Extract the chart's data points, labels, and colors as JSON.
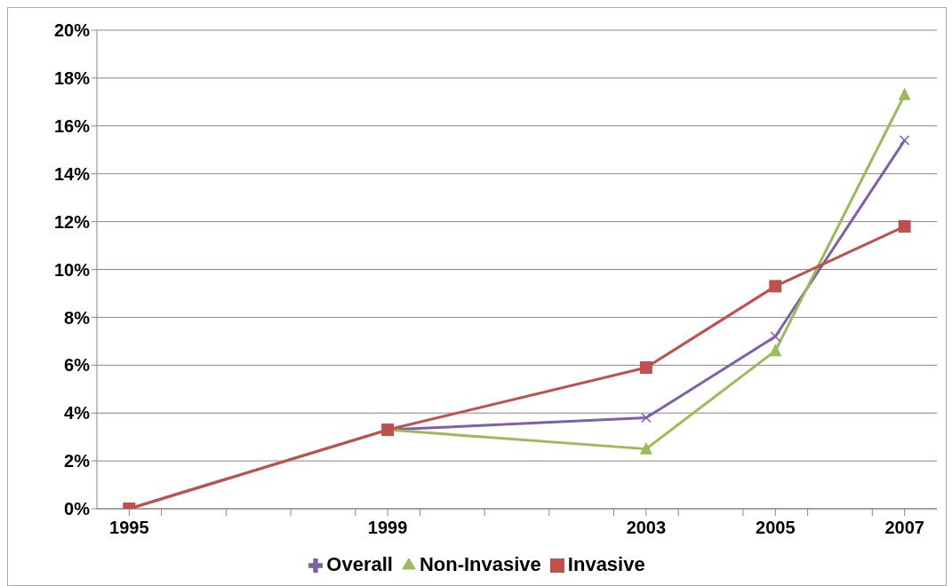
{
  "chart_data": {
    "type": "line",
    "x": [
      1995,
      1999,
      2003,
      2005,
      2007
    ],
    "series": [
      {
        "name": "Overall",
        "color": "#7f5fa8",
        "marker": "cross",
        "values": [
          0,
          3.3,
          3.8,
          7.2,
          15.4
        ]
      },
      {
        "name": "Non-Invasive",
        "color": "#9bbb59",
        "marker": "triangle",
        "values": [
          0,
          3.3,
          2.5,
          6.6,
          17.3
        ]
      },
      {
        "name": "Invasive",
        "color": "#c0504d",
        "marker": "square",
        "values": [
          0,
          3.3,
          5.9,
          9.3,
          11.8
        ]
      }
    ],
    "xlim": [
      1994.5,
      2007.5
    ],
    "xticks": [
      1995,
      {
        "value": 1995.5,
        "label": null
      },
      {
        "value": 1996.5,
        "label": null
      },
      {
        "value": 1997.5,
        "label": null
      },
      {
        "value": 1998.5,
        "label": null
      },
      1999,
      {
        "value": 1999.5,
        "label": null
      },
      {
        "value": 2000.5,
        "label": null
      },
      {
        "value": 2001.5,
        "label": null
      },
      {
        "value": 2002.5,
        "label": null
      },
      2003,
      {
        "value": 2003.5,
        "label": null
      },
      {
        "value": 2004.5,
        "label": null
      },
      2005,
      {
        "value": 2005.5,
        "label": null
      },
      {
        "value": 2006.5,
        "label": null
      },
      2007
    ],
    "ylim": [
      0,
      20
    ],
    "yticks": [
      {
        "value": 0,
        "label": "0%"
      },
      {
        "value": 2,
        "label": "2%"
      },
      {
        "value": 4,
        "label": "4%"
      },
      {
        "value": 6,
        "label": "6%"
      },
      {
        "value": 8,
        "label": "8%"
      },
      {
        "value": 10,
        "label": "10%"
      },
      {
        "value": 12,
        "label": "12%"
      },
      {
        "value": 14,
        "label": "14%"
      },
      {
        "value": 16,
        "label": "16%"
      },
      {
        "value": 18,
        "label": "18%"
      },
      {
        "value": 20,
        "label": "20%"
      }
    ],
    "grid": "y",
    "legend": "bottom"
  }
}
